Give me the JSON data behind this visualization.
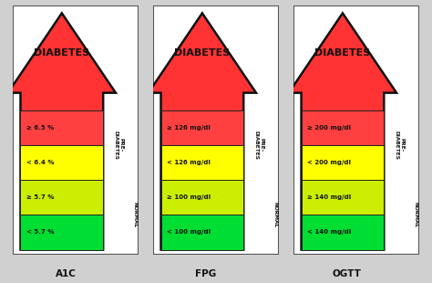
{
  "panels": [
    {
      "title": "A1C",
      "arrow_label": "DIABETES",
      "segments": [
        {
          "color": "#ff4040",
          "label": "≥ 6.5 %"
        },
        {
          "color": "#ffff00",
          "label": "< 6.4 %"
        },
        {
          "color": "#ccee00",
          "label": "≥ 5.7 %"
        },
        {
          "color": "#00dd33",
          "label": "< 5.7 %"
        }
      ]
    },
    {
      "title": "FPG",
      "arrow_label": "DIABETES",
      "segments": [
        {
          "color": "#ff4040",
          "label": "≥ 126 mg/dl"
        },
        {
          "color": "#ffff00",
          "label": "< 126 mg/dl"
        },
        {
          "color": "#ccee00",
          "label": "≥ 100 mg/dl"
        },
        {
          "color": "#00dd33",
          "label": "< 100 mg/dl"
        }
      ]
    },
    {
      "title": "OGTT",
      "arrow_label": "DIABETES",
      "segments": [
        {
          "color": "#ff4040",
          "label": "≥ 200 mg/dl"
        },
        {
          "color": "#ffff00",
          "label": "< 200 mg/dl"
        },
        {
          "color": "#ccee00",
          "label": "≥ 140 mg/dl"
        },
        {
          "color": "#00dd33",
          "label": "< 140 mg/dl"
        }
      ]
    }
  ],
  "bg_color": "#d0d0d0",
  "panel_bg": "#ffffff",
  "arrow_color": "#ff3333",
  "arrow_edge": "#111111",
  "title_fontsize": 7.5,
  "label_fontsize": 5.0,
  "diabetes_fontsize": 8.0
}
